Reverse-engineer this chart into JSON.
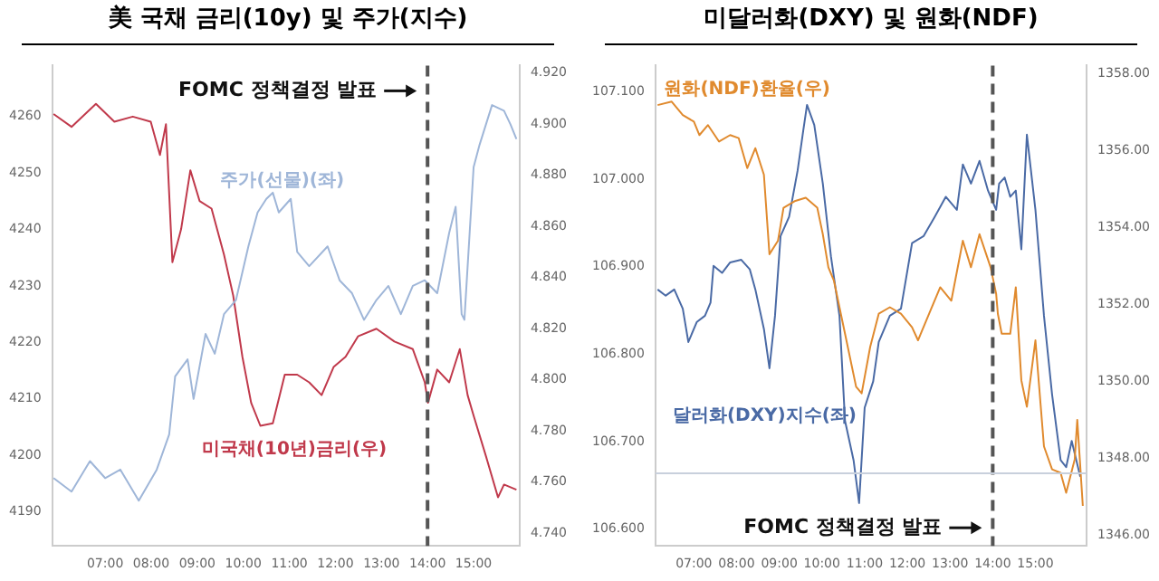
{
  "chart_data": [
    {
      "type": "line",
      "title": "美 국채 금리(10y) 및 주가(지수)",
      "legend": false,
      "grid": false,
      "marker": "none",
      "line_style": "solid",
      "xlim": [
        5.85,
        16.0
      ],
      "xticks": [
        {
          "value": 7,
          "label": "07:00"
        },
        {
          "value": 8,
          "label": "08:00"
        },
        {
          "value": 9,
          "label": "09:00"
        },
        {
          "value": 10,
          "label": "10:00"
        },
        {
          "value": 11,
          "label": "11:00"
        },
        {
          "value": 12,
          "label": "12:00"
        },
        {
          "value": 13,
          "label": "13:00"
        },
        {
          "value": 14,
          "label": "14:00"
        },
        {
          "value": 15,
          "label": "15:00"
        }
      ],
      "ylim": [
        4184,
        4269
      ],
      "yticks": [
        4190,
        4200,
        4210,
        4220,
        4230,
        4240,
        4250,
        4260
      ],
      "y2lim": [
        4.735,
        4.923
      ],
      "y2ticks": [
        {
          "value": 4.74,
          "label": "4.740"
        },
        {
          "value": 4.76,
          "label": "4.760"
        },
        {
          "value": 4.78,
          "label": "4.780"
        },
        {
          "value": 4.8,
          "label": "4.800"
        },
        {
          "value": 4.82,
          "label": "4.820"
        },
        {
          "value": 4.84,
          "label": "4.840"
        },
        {
          "value": 4.86,
          "label": "4.860"
        },
        {
          "value": 4.88,
          "label": "4.880"
        },
        {
          "value": 4.9,
          "label": "4.900"
        },
        {
          "value": 4.92,
          "label": "4.920"
        }
      ],
      "ref_lines": [
        {
          "axis": "x",
          "value": 14,
          "label": "FOMC 정책결정 발표",
          "color": "#555555",
          "line_style": "dashed"
        }
      ],
      "series": [
        {
          "name": "주가(선물)(좌)",
          "color": "#9fb6d8",
          "axis": "y",
          "x": [
            5.88,
            6.27,
            6.67,
            7.0,
            7.33,
            7.73,
            8.12,
            8.39,
            8.52,
            8.79,
            8.92,
            9.18,
            9.38,
            9.58,
            9.84,
            10.11,
            10.31,
            10.5,
            10.64,
            10.77,
            11.03,
            11.17,
            11.43,
            11.83,
            12.09,
            12.36,
            12.62,
            12.89,
            13.15,
            13.42,
            13.68,
            13.94,
            14.21,
            14.47,
            14.61,
            14.74,
            14.8,
            15.0,
            15.13,
            15.4,
            15.66,
            15.8,
            15.93
          ],
          "values": [
            4196,
            4193.6,
            4199,
            4196,
            4197.5,
            4192,
            4197.5,
            4203.7,
            4214,
            4217,
            4210,
            4221.5,
            4218,
            4225,
            4227.5,
            4237,
            4243,
            4245.4,
            4246.5,
            4243,
            4245.4,
            4236,
            4233.5,
            4237,
            4231,
            4228.7,
            4224,
            4227.5,
            4230,
            4225,
            4230,
            4231,
            4228.7,
            4239.4,
            4244,
            4225,
            4224,
            4251,
            4255,
            4262,
            4261,
            4258.6,
            4256
          ]
        },
        {
          "name": "미국채(10년)금리(우)",
          "color": "#c0394b",
          "axis": "y2",
          "x": [
            5.88,
            6.27,
            6.8,
            7.2,
            7.6,
            7.99,
            8.19,
            8.32,
            8.46,
            8.65,
            8.85,
            9.05,
            9.31,
            9.58,
            9.78,
            9.98,
            10.17,
            10.37,
            10.64,
            10.9,
            11.17,
            11.43,
            11.7,
            11.96,
            12.22,
            12.49,
            12.89,
            13.28,
            13.68,
            13.94,
            14.01,
            14.21,
            14.47,
            14.7,
            14.87,
            15.0,
            15.27,
            15.53,
            15.66,
            15.93
          ],
          "values": [
            4.904,
            4.899,
            4.908,
            4.901,
            4.903,
            4.901,
            4.888,
            4.9,
            4.846,
            4.859,
            4.882,
            4.87,
            4.867,
            4.849,
            4.833,
            4.809,
            4.791,
            4.782,
            4.783,
            4.802,
            4.802,
            4.799,
            4.794,
            4.805,
            4.809,
            4.817,
            4.82,
            4.815,
            4.812,
            4.799,
            4.791,
            4.804,
            4.799,
            4.812,
            4.794,
            4.786,
            4.77,
            4.754,
            4.759,
            4.757
          ]
        }
      ]
    },
    {
      "type": "line",
      "title": "미달러화(DXY) 및 원화(NDF)",
      "legend": false,
      "grid": false,
      "marker": "none",
      "line_style": "solid",
      "xlim": [
        6.1,
        16.2
      ],
      "xticks": [
        {
          "value": 7,
          "label": "07:00"
        },
        {
          "value": 8,
          "label": "08:00"
        },
        {
          "value": 9,
          "label": "09:00"
        },
        {
          "value": 10,
          "label": "10:00"
        },
        {
          "value": 11,
          "label": "11:00"
        },
        {
          "value": 12,
          "label": "12:00"
        },
        {
          "value": 13,
          "label": "13:00"
        },
        {
          "value": 14,
          "label": "14:00"
        },
        {
          "value": 15,
          "label": "15:00"
        }
      ],
      "ylim": [
        106.581,
        107.13
      ],
      "yticks": [
        {
          "value": 106.6,
          "label": "106.600"
        },
        {
          "value": 106.7,
          "label": "106.700"
        },
        {
          "value": 106.8,
          "label": "106.800"
        },
        {
          "value": 106.9,
          "label": "106.900"
        },
        {
          "value": 107.0,
          "label": "107.000"
        },
        {
          "value": 107.1,
          "label": "107.100"
        }
      ],
      "y2lim": [
        1345.72,
        1358.22
      ],
      "y2ticks": [
        {
          "value": 1346,
          "label": "1346.00"
        },
        {
          "value": 1348,
          "label": "1348.00"
        },
        {
          "value": 1350,
          "label": "1350.00"
        },
        {
          "value": 1352,
          "label": "1352.00"
        },
        {
          "value": 1354,
          "label": "1354.00"
        },
        {
          "value": 1356,
          "label": "1356.00"
        },
        {
          "value": 1358,
          "label": "1358.00"
        }
      ],
      "ref_lines": [
        {
          "axis": "x",
          "value": 14,
          "label": "FOMC 정책결정 발표",
          "color": "#555555",
          "line_style": "dashed"
        },
        {
          "axis": "y",
          "value": 106.664,
          "color": "#c8d0dc",
          "line_style": "solid"
        }
      ],
      "series": [
        {
          "name": "원화(NDF)환율(우)",
          "color": "#e08a2e",
          "axis": "y2",
          "x": [
            6.15,
            6.48,
            6.74,
            7.0,
            7.13,
            7.33,
            7.59,
            7.85,
            8.05,
            8.25,
            8.44,
            8.64,
            8.77,
            8.97,
            9.1,
            9.36,
            9.62,
            9.89,
            10.02,
            10.15,
            10.28,
            10.54,
            10.8,
            10.93,
            11.13,
            11.33,
            11.59,
            11.85,
            12.11,
            12.25,
            12.51,
            12.77,
            13.03,
            13.3,
            13.49,
            13.69,
            13.95,
            14.08,
            14.12,
            14.21,
            14.41,
            14.54,
            14.67,
            14.8,
            15.0,
            15.2,
            15.39,
            15.59,
            15.72,
            15.92,
            15.98,
            16.11
          ],
          "values": [
            1357.19,
            1357.28,
            1356.93,
            1356.76,
            1356.41,
            1356.67,
            1356.24,
            1356.41,
            1356.33,
            1355.55,
            1356.07,
            1355.38,
            1353.31,
            1353.66,
            1354.52,
            1354.69,
            1354.78,
            1354.52,
            1353.83,
            1352.97,
            1352.62,
            1351.24,
            1349.86,
            1349.69,
            1350.9,
            1351.76,
            1351.93,
            1351.76,
            1351.41,
            1351.07,
            1351.76,
            1352.45,
            1352.1,
            1353.66,
            1352.97,
            1353.83,
            1352.97,
            1352.28,
            1351.76,
            1351.24,
            1351.24,
            1352.45,
            1350.03,
            1349.34,
            1351.07,
            1348.31,
            1347.71,
            1347.62,
            1347.1,
            1347.97,
            1349.0,
            1346.76
          ]
        },
        {
          "name": "달러화(DXY)지수(좌)",
          "color": "#4a6aa5",
          "axis": "y",
          "x": [
            6.15,
            6.34,
            6.54,
            6.74,
            6.87,
            7.07,
            7.26,
            7.39,
            7.46,
            7.66,
            7.85,
            8.11,
            8.31,
            8.44,
            8.64,
            8.77,
            8.9,
            9.03,
            9.23,
            9.43,
            9.56,
            9.65,
            9.82,
            10.02,
            10.21,
            10.41,
            10.54,
            10.74,
            10.87,
            11.0,
            11.2,
            11.33,
            11.59,
            11.85,
            12.11,
            12.38,
            12.64,
            12.9,
            13.16,
            13.3,
            13.49,
            13.69,
            13.89,
            14.08,
            14.15,
            14.28,
            14.41,
            14.54,
            14.67,
            14.8,
            15.0,
            15.2,
            15.39,
            15.59,
            15.72,
            15.85,
            16.05
          ],
          "values": [
            106.874,
            106.867,
            106.874,
            106.852,
            106.814,
            106.837,
            106.844,
            106.859,
            106.901,
            106.893,
            106.905,
            106.908,
            106.897,
            106.874,
            106.829,
            106.784,
            106.844,
            106.935,
            106.957,
            107.01,
            107.055,
            107.085,
            107.062,
            106.995,
            106.912,
            106.844,
            106.724,
            106.679,
            106.63,
            106.739,
            106.769,
            106.814,
            106.844,
            106.852,
            106.927,
            106.935,
            106.957,
            106.98,
            106.965,
            107.017,
            106.995,
            107.021,
            106.987,
            106.965,
            106.995,
            107.002,
            106.98,
            106.987,
            106.92,
            107.051,
            106.965,
            106.844,
            106.754,
            106.679,
            106.671,
            106.701,
            106.66
          ]
        }
      ]
    }
  ]
}
